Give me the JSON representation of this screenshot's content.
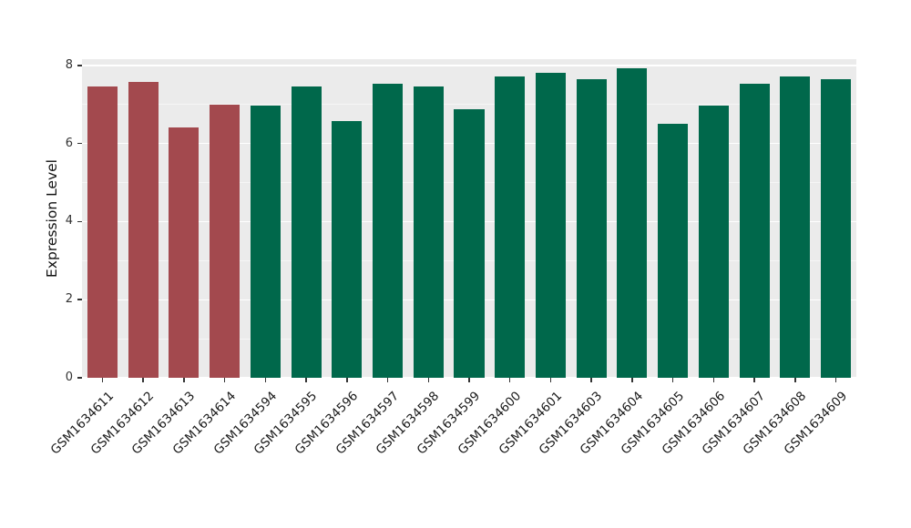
{
  "chart_data": {
    "type": "bar",
    "title": "",
    "xlabel": "",
    "ylabel": "Expression Level",
    "ylim": [
      0,
      8
    ],
    "yticks": [
      0,
      2,
      4,
      6,
      8
    ],
    "yticks_minor": [
      1,
      3,
      5,
      7
    ],
    "grid": true,
    "legend": "none",
    "panel_background": "#EBEBEB",
    "grid_color": "#FFFFFF",
    "categories": [
      "GSM1634611",
      "GSM1634612",
      "GSM1634613",
      "GSM1634614",
      "GSM1634594",
      "GSM1634595",
      "GSM1634596",
      "GSM1634597",
      "GSM1634598",
      "GSM1634599",
      "GSM1634600",
      "GSM1634601",
      "GSM1634603",
      "GSM1634604",
      "GSM1634605",
      "GSM1634606",
      "GSM1634607",
      "GSM1634608",
      "GSM1634609"
    ],
    "values": [
      7.45,
      7.58,
      6.42,
      7.0,
      6.97,
      7.47,
      6.58,
      7.52,
      7.45,
      6.87,
      7.72,
      7.8,
      7.65,
      7.92,
      6.5,
      6.97,
      7.52,
      7.72,
      7.65
    ],
    "bar_colors": [
      "#A3494E",
      "#00684B"
    ],
    "bar_group_index": [
      0,
      0,
      0,
      0,
      1,
      1,
      1,
      1,
      1,
      1,
      1,
      1,
      1,
      1,
      1,
      1,
      1,
      1,
      1
    ]
  }
}
